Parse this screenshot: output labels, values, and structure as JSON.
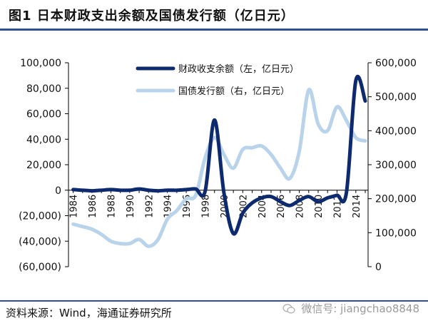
{
  "header": {
    "title": "图1   日本财政支出余额及国债发行额（亿日元）"
  },
  "footer": {
    "source": "资料来源：Wind，海通证券研究所",
    "watermark": "微信号: jiangchao8848"
  },
  "colors": {
    "fiscal_series": "#0d2a6e",
    "jgb_series": "#b8d3ea",
    "title_rule": "#2f4f8f"
  },
  "chart_data": {
    "type": "line",
    "title": "",
    "x": [
      1984,
      1985,
      1986,
      1987,
      1988,
      1989,
      1990,
      1991,
      1992,
      1993,
      1994,
      1995,
      1996,
      1997,
      1998,
      1999,
      2000,
      2001,
      2002,
      2003,
      2004,
      2005,
      2006,
      2007,
      2008,
      2009,
      2010,
      2011,
      2012,
      2013,
      2014,
      2015
    ],
    "x_tick_labels": [
      "1984",
      "1986",
      "1988",
      "1990",
      "1992",
      "1994",
      "1996",
      "1998",
      "2000",
      "2002",
      "2004",
      "2006",
      "2008",
      "2010",
      "2012",
      "2014"
    ],
    "left_axis": {
      "ylim": [
        -60000,
        100000
      ],
      "tick_values": [
        -60000,
        -40000,
        -20000,
        0,
        20000,
        40000,
        60000,
        80000,
        100000
      ],
      "tick_labels": [
        "(60,000)",
        "(40,000)",
        "(20,000)",
        "0",
        "20,000",
        "40,000",
        "60,000",
        "80,000",
        "100,000"
      ]
    },
    "right_axis": {
      "ylim": [
        0,
        600000
      ],
      "tick_values": [
        0,
        100000,
        200000,
        300000,
        400000,
        500000,
        600000
      ],
      "tick_labels": [
        "0",
        "100,000",
        "200,000",
        "300,000",
        "400,000",
        "500,000",
        "600,000"
      ]
    },
    "series": [
      {
        "name": "财政收支余额（左，亿日元）",
        "axis": "left",
        "values": [
          500,
          0,
          -500,
          0,
          500,
          0,
          0,
          1000,
          0,
          -500,
          0,
          0,
          500,
          1000,
          -1000,
          55000,
          -2000,
          -34000,
          -18000,
          -10000,
          -6000,
          -5000,
          -9000,
          -12000,
          -8000,
          -5000,
          -9000,
          -6000,
          -4000,
          -2000,
          86000,
          70000
        ]
      },
      {
        "name": "国债发行额（右，亿日元）",
        "axis": "right",
        "values": [
          125000,
          118000,
          110000,
          95000,
          75000,
          68000,
          68000,
          80000,
          60000,
          80000,
          140000,
          165000,
          200000,
          210000,
          320000,
          380000,
          330000,
          290000,
          345000,
          350000,
          355000,
          330000,
          290000,
          260000,
          340000,
          520000,
          420000,
          400000,
          470000,
          430000,
          380000,
          370000
        ]
      }
    ],
    "legend": {
      "placement": "top-center"
    },
    "grid": false
  }
}
